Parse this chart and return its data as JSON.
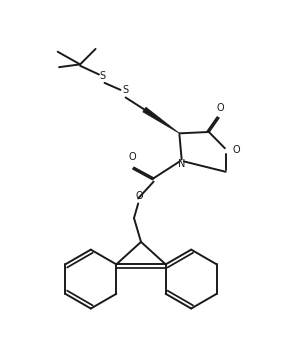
{
  "background_color": "#ffffff",
  "line_color": "#1a1a1a",
  "line_width": 1.4,
  "figsize": [
    2.82,
    3.52
  ],
  "dpi": 100,
  "xlim": [
    0,
    10
  ],
  "ylim": [
    0,
    12.5
  ]
}
